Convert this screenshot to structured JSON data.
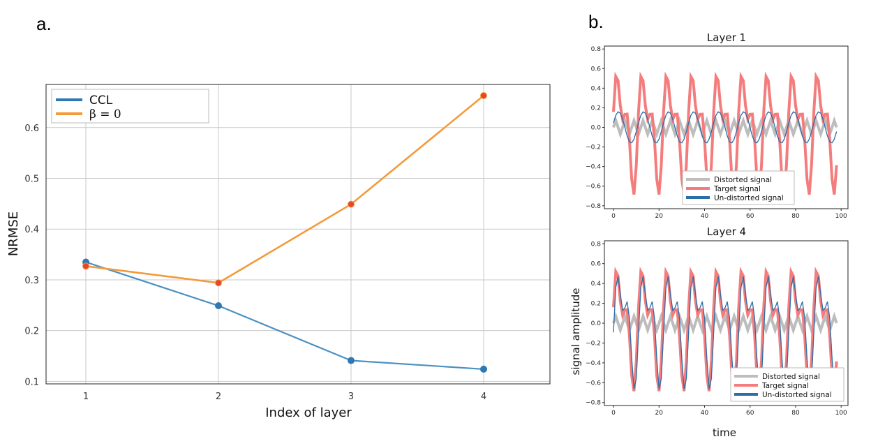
{
  "panels": {
    "a_label": "a.",
    "b_label": "b.",
    "b_ylabel": "signal amplitude",
    "b_xlabel": "time"
  },
  "chart_data": [
    {
      "type": "line",
      "id": "panel-a",
      "x": [
        1,
        2,
        3,
        4
      ],
      "series": [
        {
          "name": "CCL",
          "values": [
            0.335,
            0.249,
            0.141,
            0.124
          ],
          "color": "#4a90c2"
        },
        {
          "name": "β = 0",
          "values": [
            0.327,
            0.294,
            0.449,
            0.663
          ],
          "color": "#f39a3a"
        }
      ],
      "marker_color": "#e8452c",
      "xlabel": "Index of layer",
      "ylabel": "NRMSE",
      "xticks": [
        "1",
        "2",
        "3",
        "4"
      ],
      "yticks": [
        "0.1",
        "0.2",
        "0.3",
        "0.4",
        "0.5",
        "0.6"
      ],
      "xlim": [
        0.7,
        4.5
      ],
      "ylim": [
        0.095,
        0.685
      ],
      "grid": true,
      "legend": "top-left"
    },
    {
      "type": "line",
      "id": "layer-1",
      "title": "Layer 1",
      "xlim": [
        -4,
        103
      ],
      "ylim": [
        -0.83,
        0.83
      ],
      "xticks": [
        "0",
        "20",
        "40",
        "60",
        "80",
        "100"
      ],
      "yticks": [
        "−0.8",
        "−0.6",
        "−0.4",
        "−0.2",
        "0.0",
        "0.2",
        "0.4",
        "0.6",
        "0.8"
      ],
      "series": [
        {
          "name": "Distorted signal",
          "amplitude": 0.07,
          "period_time": 4.0,
          "color": "#bdbdbd"
        },
        {
          "name": "Target signal",
          "amplitude": 0.77,
          "period_time": 11.0,
          "color": "#f47c7c"
        },
        {
          "name": "Un-distorted signal",
          "amplitude": 0.16,
          "period_time": 11.0,
          "color": "#2b6ea8"
        }
      ],
      "legend": "bottom-center"
    },
    {
      "type": "line",
      "id": "layer-4",
      "title": "Layer 4",
      "xlim": [
        -4,
        103
      ],
      "ylim": [
        -0.83,
        0.83
      ],
      "xticks": [
        "0",
        "20",
        "40",
        "60",
        "80",
        "100"
      ],
      "yticks": [
        "−0.8",
        "−0.6",
        "−0.4",
        "−0.2",
        "0.0",
        "0.2",
        "0.4",
        "0.6",
        "0.8"
      ],
      "series": [
        {
          "name": "Distorted signal",
          "amplitude": 0.07,
          "period_time": 4.0,
          "color": "#bdbdbd"
        },
        {
          "name": "Target signal",
          "amplitude": 0.77,
          "period_time": 11.0,
          "color": "#f47c7c"
        },
        {
          "name": "Un-distorted signal",
          "amplitude": 0.74,
          "period_time": 11.0,
          "color": "#2b6ea8"
        }
      ],
      "legend": "bottom-right"
    }
  ]
}
